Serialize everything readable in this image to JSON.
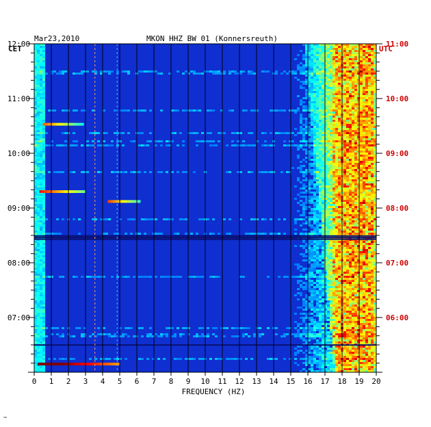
{
  "header": {
    "date": "Mar23,2010",
    "station": "MKON HHZ BW 01 (Konnersreuth)",
    "left_zone": "CET",
    "right_zone": "UTC"
  },
  "footer_mark": "™",
  "chart_data": {
    "type": "heatmap",
    "title": "MKON HHZ BW 01 (Konnersreuth)",
    "xlabel": "FREQUENCY (HZ)",
    "xlim": [
      0,
      20
    ],
    "x_ticks": [
      "0",
      "1",
      "2",
      "3",
      "4",
      "5",
      "6",
      "7",
      "8",
      "9",
      "10",
      "11",
      "12",
      "13",
      "14",
      "15",
      "16",
      "17",
      "18",
      "19",
      "20"
    ],
    "y_left_ticks": [
      "12:00",
      "11:00",
      "10:00",
      "09:00",
      "08:00",
      "07:00"
    ],
    "y_right_ticks": [
      "11:00",
      "10:00",
      "09:00",
      "08:00",
      "07:00",
      "06:00"
    ],
    "y_left_range_cet": [
      "07:00",
      "13:00"
    ],
    "colors": {
      "background": "#0f2fd0",
      "left_axis_text": "#000000",
      "right_axis_text": "#cc0000"
    }
  }
}
